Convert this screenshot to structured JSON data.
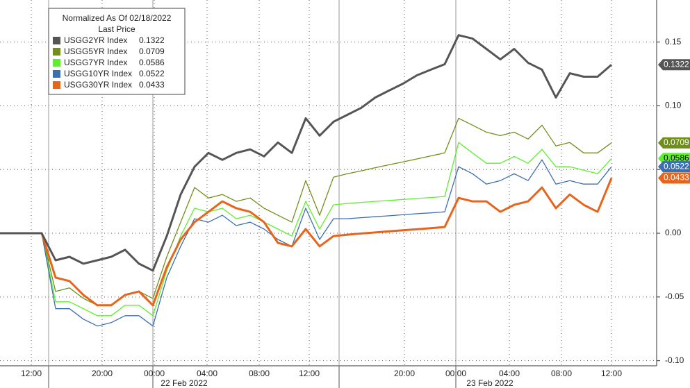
{
  "chart_data": {
    "type": "line",
    "legend": {
      "title": "Normalized As Of 02/18/2022",
      "subtitle": "Last Price"
    },
    "x_tick_labels": [
      "12:00",
      "20:00",
      "00:00",
      "04:00",
      "08:00",
      "12:00",
      "20:00",
      "00:00",
      "04:00",
      "08:00",
      "12:00"
    ],
    "date_labels": [
      "22 Feb 2022",
      "23 Feb 2022"
    ],
    "ylim": [
      -0.104,
      0.183
    ],
    "yticks": [
      0.15,
      {
        "value": 0.1,
        "label": "0.10"
      },
      0.05,
      {
        "value": 0,
        "label": "0.00"
      },
      -0.05,
      {
        "value": -0.1,
        "label": "-0.10"
      }
    ],
    "grid": true,
    "series": [
      {
        "name": "USGG2YR Index",
        "color": "#555555",
        "last": 0.1322,
        "values": [
          0,
          0,
          0,
          0,
          -0.0212,
          -0.0185,
          -0.0239,
          -0.0212,
          -0.0185,
          -0.013,
          -0.0239,
          -0.0293,
          -0.0022,
          0.0304,
          0.0522,
          0.063,
          0.0576,
          0.063,
          0.0658,
          0.0603,
          0.0712,
          0.063,
          0.0902,
          0.0766,
          0.0875,
          0.0929,
          0.0984,
          0.1065,
          0.112,
          0.1174,
          0.1239,
          0.1283,
          0.1326,
          0.1554,
          0.1527,
          0.1446,
          0.1364,
          0.1446,
          0.1337,
          0.1283,
          0.1065,
          0.1255,
          0.1228,
          0.1228,
          0.1322
        ]
      },
      {
        "name": "USGG5YR Index",
        "color": "#6f8f1a",
        "last": 0.0709,
        "values": [
          0,
          0,
          0,
          0,
          -0.0457,
          -0.0429,
          -0.0511,
          -0.0565,
          -0.0565,
          -0.0484,
          -0.0457,
          -0.0511,
          -0.0185,
          0.0087,
          0.0359,
          0.0277,
          0.0304,
          0.025,
          0.0277,
          0.0196,
          0.0141,
          0.0087,
          0.0413,
          0.0141,
          0.044,
          0.0467,
          0.049,
          0.0514,
          0.0537,
          0.056,
          0.0583,
          0.0607,
          0.063,
          0.0902,
          0.0848,
          0.0793,
          0.0766,
          0.0793,
          0.0739,
          0.0848,
          0.0685,
          0.0712,
          0.063,
          0.063,
          0.0709
        ]
      },
      {
        "name": "USGG7YR Index",
        "color": "#5cf02a",
        "last": 0.0586,
        "values": [
          0,
          0,
          0,
          0,
          -0.0538,
          -0.0538,
          -0.0592,
          -0.0647,
          -0.0647,
          -0.0565,
          -0.0565,
          -0.0647,
          -0.0293,
          -0.0022,
          0.0196,
          0.0168,
          0.0196,
          0.0114,
          0.0141,
          0.0087,
          0.0033,
          -0.0022,
          0.025,
          0.0033,
          0.0223,
          0.0234,
          0.0242,
          0.025,
          0.0257,
          0.0265,
          0.0273,
          0.028,
          0.0288,
          0.0712,
          0.063,
          0.0549,
          0.0549,
          0.0603,
          0.0549,
          0.0658,
          0.0522,
          0.0522,
          0.0495,
          0.0467,
          0.0586
        ]
      },
      {
        "name": "USGG10YR Index",
        "color": "#3a6fb0",
        "last": 0.0522,
        "values": [
          0,
          0,
          0,
          0,
          -0.0592,
          -0.0592,
          -0.0674,
          -0.0728,
          -0.0701,
          -0.0647,
          -0.0647,
          -0.0728,
          -0.0348,
          -0.0103,
          0.0114,
          0.0087,
          0.0141,
          0.006,
          0.0087,
          0.0033,
          -0.0049,
          -0.0103,
          0.0196,
          -0.0049,
          0.0114,
          0.0114,
          0.0122,
          0.013,
          0.0137,
          0.0145,
          0.0153,
          0.016,
          0.0168,
          0.0522,
          0.0467,
          0.0386,
          0.0413,
          0.0467,
          0.0413,
          0.0576,
          0.0386,
          0.0413,
          0.0386,
          0.0386,
          0.0522
        ]
      },
      {
        "name": "USGG30YR Index",
        "color": "#e8641b",
        "last": 0.0433,
        "values": [
          0,
          0,
          0,
          0,
          -0.0348,
          -0.0375,
          -0.0484,
          -0.0565,
          -0.0565,
          -0.0484,
          -0.0457,
          -0.0565,
          -0.0266,
          -0.0049,
          0.0087,
          0.0168,
          0.025,
          0.0196,
          0.0168,
          0.0087,
          -0.0076,
          -0.0103,
          0.0033,
          -0.0103,
          -0.0022,
          -0.0011,
          -0.0002,
          0.0006,
          0.0015,
          0.0023,
          0.0032,
          0.004,
          0.0049,
          0.0277,
          0.025,
          0.025,
          0.0168,
          0.0223,
          0.025,
          0.0359,
          0.0196,
          0.0304,
          0.0223,
          0.0168,
          0.0433
        ]
      }
    ]
  }
}
